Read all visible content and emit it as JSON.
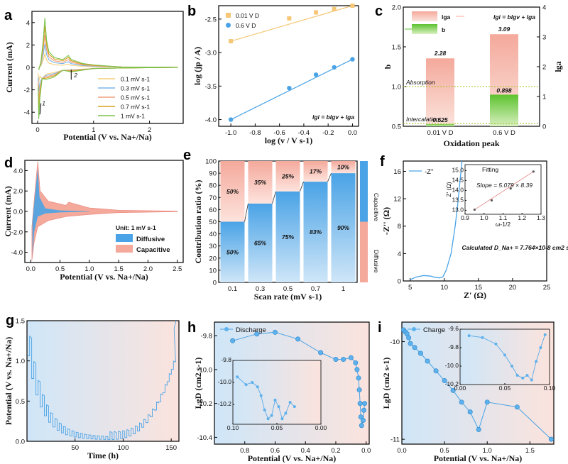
{
  "chart_data": [
    {
      "panel": "a",
      "type": "line",
      "xlabel": "Potential (V vs. Na+/Na)",
      "ylabel": "Current (mA)",
      "xlim": [
        0,
        2.5
      ],
      "ylim": [
        -5,
        5
      ],
      "xticks": [
        "0",
        "1",
        "2"
      ],
      "yticks": [
        "-4",
        "-2",
        "0",
        "2",
        "4"
      ],
      "annotations": [
        "1",
        "2"
      ],
      "series": [
        {
          "name": "0.1 mV s-1",
          "color": "#f5cf7a",
          "peak": 1.2,
          "min": -1.3
        },
        {
          "name": "0.3 mV s-1",
          "color": "#7ab6e8",
          "peak": 2.1,
          "min": -2.2
        },
        {
          "name": "0.5 mV s-1",
          "color": "#f2a07e",
          "peak": 2.9,
          "min": -3.0
        },
        {
          "name": "0.7 mV s-1",
          "color": "#d8a01f",
          "peak": 3.7,
          "min": -3.8
        },
        {
          "name": "1 mV s-1",
          "color": "#7cc24a",
          "peak": 4.4,
          "min": -4.6
        }
      ]
    },
    {
      "panel": "b",
      "type": "scatter",
      "xlabel": "log (v / V s-1)",
      "ylabel": "log (jp / A)",
      "xlim": [
        -1.1,
        0.05
      ],
      "ylim": [
        -4.1,
        -2.3
      ],
      "xticks": [
        "-1.0",
        "-0.8",
        "-0.6",
        "-0.4",
        "-0.2",
        "0.0"
      ],
      "yticks": [
        "-4.0",
        "-3.5",
        "-3.0",
        "-2.5"
      ],
      "equation": "lgi = blgv + lga",
      "series": [
        {
          "name": "0.01 V D",
          "color": "#f5c777",
          "x": [
            -1.0,
            -0.52,
            -0.3,
            -0.15,
            0.0
          ],
          "y": [
            -2.83,
            -2.49,
            -2.4,
            -2.35,
            -2.3
          ]
        },
        {
          "name": "0.6 V D",
          "color": "#4aa3e6",
          "x": [
            -1.0,
            -0.52,
            -0.3,
            -0.15,
            0.0
          ],
          "y": [
            -4.0,
            -3.53,
            -3.33,
            -3.22,
            -3.1
          ]
        }
      ]
    },
    {
      "panel": "c",
      "type": "bar",
      "xlabel": "Oxidation peak",
      "ylabel": "b",
      "ylabel2": "lga",
      "categories": [
        "0.01 V D",
        "0.6 V D"
      ],
      "ylim": [
        0.5,
        2.0
      ],
      "y2lim": [
        0,
        4
      ],
      "yticks": [
        "0.5",
        "1.0",
        "1.5",
        "2.0"
      ],
      "y2ticks": [
        "0",
        "1",
        "2",
        "3",
        "4"
      ],
      "legend": [
        "lga",
        "b"
      ],
      "equation": "lgi = blgv + lga",
      "lga_values": [
        2.28,
        3.09
      ],
      "lga_labels": [
        "2.28",
        "3.09"
      ],
      "b_values": [
        0.525,
        0.898
      ],
      "b_labels": [
        "0.525",
        "0.898"
      ],
      "reference_lines": [
        {
          "label": "Absorption",
          "value": 1.0
        },
        {
          "label": "Intercalation",
          "value": 0.5
        }
      ]
    },
    {
      "panel": "d",
      "type": "area",
      "xlabel": "Potential (V vs. Na+/Na)",
      "ylabel": "Current (mA)",
      "xlim": [
        -0.1,
        2.6
      ],
      "ylim": [
        -5,
        5
      ],
      "xticks": [
        "0.0",
        "0.5",
        "1.0",
        "1.5",
        "2.0",
        "2.5"
      ],
      "yticks": [
        "-4.0",
        "-2.0",
        "0.0",
        "2.0",
        "4.0"
      ],
      "note": "Unit: 1 mV s-1",
      "legend": [
        {
          "name": "Diffusive",
          "color": "#4aa3e6"
        },
        {
          "name": "Capacitive",
          "color": "#f4a99b"
        }
      ]
    },
    {
      "panel": "e",
      "type": "bar",
      "xlabel": "Scan rate (mV s-1)",
      "ylabel": "Contribution ratio (%)",
      "ylim": [
        0,
        100
      ],
      "yticks": [
        "0",
        "10",
        "20",
        "30",
        "40",
        "50",
        "60",
        "70",
        "80",
        "90",
        "100"
      ],
      "categories": [
        "0.1",
        "0.3",
        "0.5",
        "0.7",
        "1"
      ],
      "series": [
        {
          "name": "Diffusive",
          "values": [
            50,
            65,
            75,
            83,
            90
          ],
          "labels": [
            "50%",
            "65%",
            "75%",
            "83%",
            "90%"
          ]
        },
        {
          "name": "Capacitive",
          "values": [
            50,
            35,
            25,
            17,
            10
          ],
          "labels": [
            "50%",
            "35%",
            "25%",
            "17%",
            "10%"
          ]
        }
      ],
      "side_labels": [
        "Capacitive",
        "Diffusive"
      ]
    },
    {
      "panel": "f",
      "type": "line",
      "xlabel": "Z' (Ω)",
      "ylabel": "-Z'' (Ω)",
      "xlim": [
        4,
        25
      ],
      "ylim": [
        0,
        17.5
      ],
      "xticks": [
        "5",
        "10",
        "15",
        "20",
        "25"
      ],
      "yticks": [
        "0",
        "4",
        "8",
        "12",
        "16"
      ],
      "legend": [
        "-Z''"
      ],
      "x": [
        5.0,
        6.0,
        7.0,
        8.0,
        8.6,
        9.3,
        9.8,
        10.3,
        11.0,
        11.6,
        12.0,
        12.3,
        12.6
      ],
      "y": [
        0.2,
        0.6,
        0.8,
        0.7,
        0.55,
        0.45,
        0.6,
        1.6,
        4.0,
        8.0,
        11.5,
        14.5,
        17.5
      ],
      "calculated": "Calculated D_Na+ = 7.764×10-8 cm2 s-1",
      "inset": {
        "xlabel": "ω-1/2",
        "ylabel": "Z' (Ω)",
        "legend": "Fitting",
        "equation": "Slope = 5.079 × 8.39",
        "xlim": [
          0.9,
          1.3
        ],
        "ylim": [
          12.8,
          15.3
        ],
        "xticks": [
          "0.9",
          "1.0",
          "1.1",
          "1.2",
          "1.3"
        ],
        "yticks": [
          "13.0",
          "13.5",
          "14.0",
          "14.5",
          "15.0"
        ],
        "x": [
          0.95,
          1.04,
          1.14,
          1.26
        ],
        "y": [
          13.03,
          13.5,
          14.1,
          14.95
        ]
      }
    },
    {
      "panel": "g",
      "type": "line",
      "xlabel": "Time (h)",
      "ylabel": "Potential (V vs. Na+/Na)",
      "xlim": [
        0,
        158
      ],
      "ylim": [
        0,
        1.5
      ],
      "xticks": [
        "50",
        "100",
        "150"
      ],
      "yticks": [
        "0.0",
        "0.5",
        "1.0",
        "1.5"
      ]
    },
    {
      "panel": "h",
      "type": "line",
      "xlabel": "Potential (V vs. Na+/Na)",
      "ylabel": "LgD (cm2 s-1)",
      "xlim": [
        1.0,
        -0.02
      ],
      "ylim": [
        -10.44,
        -9.72
      ],
      "xticks": [
        "0.8",
        "0.6",
        "0.4",
        "0.2",
        "0.0"
      ],
      "yticks": [
        "-9.8",
        "-10.0",
        "-10.2",
        "-10.4"
      ],
      "legend": [
        "Discharge"
      ],
      "x": [
        0.88,
        0.72,
        0.6,
        0.45,
        0.3,
        0.2,
        0.15,
        0.1,
        0.07,
        0.06,
        0.05,
        0.045,
        0.04,
        0.035,
        0.03,
        0.02,
        0.015,
        0.01
      ],
      "y": [
        -9.83,
        -9.79,
        -9.78,
        -9.82,
        -9.9,
        -9.94,
        -9.94,
        -9.93,
        -9.96,
        -10.0,
        -10.05,
        -10.12,
        -10.2,
        -10.28,
        -10.33,
        -10.3,
        -10.24,
        -10.2
      ],
      "inset": {
        "xlim": [
          0.1,
          0.0
        ],
        "ylim": [
          -10.38,
          -9.8
        ],
        "xticks": [
          "0.10",
          "0.05",
          "0.00"
        ],
        "yticks": [
          "-9.8",
          "-10.0",
          "-10.2"
        ],
        "x": [
          0.095,
          0.085,
          0.078,
          0.072,
          0.068,
          0.064,
          0.06,
          0.056,
          0.052,
          0.048,
          0.044,
          0.04,
          0.035,
          0.03
        ],
        "y": [
          -9.95,
          -10.02,
          -10.0,
          -10.04,
          -10.12,
          -10.25,
          -10.33,
          -10.3,
          -10.16,
          -10.22,
          -10.33,
          -10.28,
          -10.18,
          -10.22
        ]
      }
    },
    {
      "panel": "i",
      "type": "line",
      "xlabel": "Potential (V vs. Na+/Na)",
      "ylabel": "LgD (cm2 s-1)",
      "xlim": [
        0,
        1.78
      ],
      "ylim": [
        -11.05,
        -9.8
      ],
      "xticks": [
        "0.0",
        "0.5",
        "1.0",
        "1.5"
      ],
      "yticks": [
        "-10",
        "-11"
      ],
      "legend": [
        "Charge"
      ],
      "x": [
        0.02,
        0.04,
        0.06,
        0.08,
        0.1,
        0.15,
        0.22,
        0.3,
        0.4,
        0.5,
        0.6,
        0.7,
        0.8,
        0.9,
        1.0,
        1.35,
        1.75
      ],
      "y": [
        -9.88,
        -9.9,
        -9.92,
        -9.96,
        -10.02,
        -10.06,
        -10.12,
        -10.2,
        -10.3,
        -10.4,
        -10.5,
        -10.62,
        -10.72,
        -10.9,
        -10.62,
        -10.67,
        -11.0
      ],
      "inset": {
        "xlim": [
          0.0,
          0.1
        ],
        "ylim": [
          -10.2,
          -9.6
        ],
        "xticks": [
          "0.00",
          "0.05",
          "0.10"
        ],
        "yticks": [
          "-9.6",
          "-9.8",
          "-10.0",
          "-10.2"
        ],
        "x": [
          0.01,
          0.025,
          0.04,
          0.05,
          0.058,
          0.064,
          0.07,
          0.075,
          0.08,
          0.085,
          0.09,
          0.095
        ],
        "y": [
          -9.67,
          -9.69,
          -9.76,
          -9.88,
          -10.0,
          -10.1,
          -10.13,
          -10.1,
          -10.15,
          -9.95,
          -9.8,
          -9.66
        ]
      }
    }
  ]
}
